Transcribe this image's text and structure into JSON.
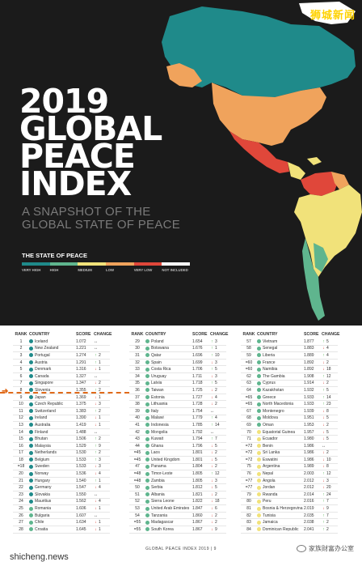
{
  "brand": "狮城新闻",
  "cover": {
    "title_lines": [
      "2019",
      "GLOBAL",
      "PEACE",
      "INDEX"
    ],
    "subtitle_lines": [
      "A SNAPSHOT OF THE",
      "GLOBAL STATE OF PEACE"
    ],
    "state_label": "THE STATE OF PEACE",
    "legend": [
      {
        "label": "VERY HIGH",
        "color": "#1f8a8a"
      },
      {
        "label": "HIGH",
        "color": "#5fb58e"
      },
      {
        "label": "MEDIUM",
        "color": "#f1e27a"
      },
      {
        "label": "LOW",
        "color": "#f0a35c"
      },
      {
        "label": "VERY LOW",
        "color": "#e0473a"
      },
      {
        "label": "NOT INCLUDED",
        "color": "#ffffff"
      }
    ]
  },
  "table_headers": {
    "rank": "RANK",
    "country": "COUNTRY",
    "score": "SCORE",
    "change": "CHANGE"
  },
  "columns": [
    [
      {
        "rank": "1",
        "country": "Iceland",
        "score": "1.072",
        "change": "↔",
        "n": "",
        "dir": "same",
        "color": "#1f8a8a"
      },
      {
        "rank": "2",
        "country": "New Zealand",
        "score": "1.221",
        "change": "↔",
        "n": "",
        "dir": "same",
        "color": "#1f8a8a"
      },
      {
        "rank": "3",
        "country": "Portugal",
        "score": "1.274",
        "change": "↑",
        "n": "2",
        "dir": "up",
        "color": "#1f8a8a"
      },
      {
        "rank": "4",
        "country": "Austria",
        "score": "1.291",
        "change": "↑",
        "n": "1",
        "dir": "up",
        "color": "#1f8a8a"
      },
      {
        "rank": "5",
        "country": "Denmark",
        "score": "1.316",
        "change": "↓",
        "n": "1",
        "dir": "down",
        "color": "#1f8a8a"
      },
      {
        "rank": "6",
        "country": "Canada",
        "score": "1.327",
        "change": "↔",
        "n": "",
        "dir": "same",
        "color": "#1f8a8a"
      },
      {
        "rank": "7",
        "country": "Singapore",
        "score": "1.347",
        "change": "↓",
        "n": "2",
        "dir": "down",
        "color": "#1f8a8a"
      },
      {
        "rank": "8",
        "country": "Slovenia",
        "score": "1.355",
        "change": "↑",
        "n": "2",
        "dir": "up",
        "color": "#1f8a8a"
      },
      {
        "rank": "9",
        "country": "Japan",
        "score": "1.369",
        "change": "↓",
        "n": "1",
        "dir": "down",
        "color": "#1f8a8a"
      },
      {
        "rank": "10",
        "country": "Czech Republic",
        "score": "1.375",
        "change": "↓",
        "n": "3",
        "dir": "down",
        "color": "#1f8a8a"
      },
      {
        "rank": "11",
        "country": "Switzerland",
        "score": "1.383",
        "change": "↑",
        "n": "2",
        "dir": "up",
        "color": "#1f8a8a"
      },
      {
        "rank": "12",
        "country": "Ireland",
        "score": "1.390",
        "change": "↓",
        "n": "1",
        "dir": "down",
        "color": "#1f8a8a"
      },
      {
        "rank": "13",
        "country": "Australia",
        "score": "1.419",
        "change": "↓",
        "n": "1",
        "dir": "down",
        "color": "#1f8a8a"
      },
      {
        "rank": "14",
        "country": "Finland",
        "score": "1.488",
        "change": "↔",
        "n": "",
        "dir": "same",
        "color": "#1f8a8a"
      },
      {
        "rank": "15",
        "country": "Bhutan",
        "score": "1.506",
        "change": "↑",
        "n": "2",
        "dir": "up",
        "color": "#1f8a8a"
      },
      {
        "rank": "16",
        "country": "Malaysia",
        "score": "1.529",
        "change": "↑",
        "n": "9",
        "dir": "up",
        "color": "#1f8a8a"
      },
      {
        "rank": "17",
        "country": "Netherlands",
        "score": "1.530",
        "change": "↑",
        "n": "2",
        "dir": "up",
        "color": "#1f8a8a"
      },
      {
        "rank": "18",
        "country": "Belgium",
        "score": "1.533",
        "change": "↑",
        "n": "3",
        "dir": "up",
        "color": "#1f8a8a"
      },
      {
        "rank": "=18",
        "country": "Sweden",
        "score": "1.533",
        "change": "↓",
        "n": "3",
        "dir": "down",
        "color": "#1f8a8a"
      },
      {
        "rank": "20",
        "country": "Norway",
        "score": "1.536",
        "change": "↓",
        "n": "4",
        "dir": "down",
        "color": "#1f8a8a"
      },
      {
        "rank": "21",
        "country": "Hungary",
        "score": "1.540",
        "change": "↑",
        "n": "1",
        "dir": "up",
        "color": "#1f8a8a"
      },
      {
        "rank": "22",
        "country": "Germany",
        "score": "1.547",
        "change": "↓",
        "n": "4",
        "dir": "down",
        "color": "#1f8a8a"
      },
      {
        "rank": "23",
        "country": "Slovakia",
        "score": "1.550",
        "change": "↔",
        "n": "",
        "dir": "same",
        "color": "#1f8a8a"
      },
      {
        "rank": "24",
        "country": "Mauritius",
        "score": "1.562",
        "change": "↓",
        "n": "4",
        "dir": "down",
        "color": "#1f8a8a"
      },
      {
        "rank": "25",
        "country": "Romania",
        "score": "1.606",
        "change": "↓",
        "n": "1",
        "dir": "down",
        "color": "#5fb58e"
      },
      {
        "rank": "26",
        "country": "Bulgaria",
        "score": "1.607",
        "change": "↔",
        "n": "",
        "dir": "same",
        "color": "#5fb58e"
      },
      {
        "rank": "27",
        "country": "Chile",
        "score": "1.634",
        "change": "↓",
        "n": "1",
        "dir": "down",
        "color": "#5fb58e"
      },
      {
        "rank": "28",
        "country": "Croatia",
        "score": "1.645",
        "change": "↓",
        "n": "1",
        "dir": "down",
        "color": "#5fb58e"
      }
    ],
    [
      {
        "rank": "29",
        "country": "Poland",
        "score": "1.654",
        "change": "↑",
        "n": "3",
        "dir": "up",
        "color": "#5fb58e"
      },
      {
        "rank": "30",
        "country": "Botswana",
        "score": "1.676",
        "change": "↑",
        "n": "1",
        "dir": "up",
        "color": "#5fb58e"
      },
      {
        "rank": "31",
        "country": "Qatar",
        "score": "1.696",
        "change": "↑",
        "n": "10",
        "dir": "up",
        "color": "#5fb58e"
      },
      {
        "rank": "32",
        "country": "Spain",
        "score": "1.699",
        "change": "↓",
        "n": "3",
        "dir": "down",
        "color": "#5fb58e"
      },
      {
        "rank": "33",
        "country": "Costa Rica",
        "score": "1.706",
        "change": "↑",
        "n": "5",
        "dir": "up",
        "color": "#5fb58e"
      },
      {
        "rank": "34",
        "country": "Uruguay",
        "score": "1.711",
        "change": "↓",
        "n": "3",
        "dir": "down",
        "color": "#5fb58e"
      },
      {
        "rank": "35",
        "country": "Latvia",
        "score": "1.718",
        "change": "↑",
        "n": "5",
        "dir": "up",
        "color": "#5fb58e"
      },
      {
        "rank": "36",
        "country": "Taiwan",
        "score": "1.725",
        "change": "↓",
        "n": "2",
        "dir": "down",
        "color": "#5fb58e"
      },
      {
        "rank": "37",
        "country": "Estonia",
        "score": "1.727",
        "change": "↓",
        "n": "4",
        "dir": "down",
        "color": "#5fb58e"
      },
      {
        "rank": "38",
        "country": "Lithuania",
        "score": "1.728",
        "change": "↓",
        "n": "2",
        "dir": "down",
        "color": "#5fb58e"
      },
      {
        "rank": "39",
        "country": "Italy",
        "score": "1.754",
        "change": "↔",
        "n": "",
        "dir": "same",
        "color": "#5fb58e"
      },
      {
        "rank": "40",
        "country": "Malawi",
        "score": "1.779",
        "change": "↑",
        "n": "4",
        "dir": "up",
        "color": "#5fb58e"
      },
      {
        "rank": "41",
        "country": "Indonesia",
        "score": "1.785",
        "change": "↑",
        "n": "14",
        "dir": "up",
        "color": "#5fb58e"
      },
      {
        "rank": "42",
        "country": "Mongolia",
        "score": "1.792",
        "change": "↔",
        "n": "",
        "dir": "same",
        "color": "#5fb58e"
      },
      {
        "rank": "43",
        "country": "Kuwait",
        "score": "1.794",
        "change": "↑",
        "n": "7",
        "dir": "up",
        "color": "#5fb58e"
      },
      {
        "rank": "44",
        "country": "Ghana",
        "score": "1.796",
        "change": "↓",
        "n": "5",
        "dir": "down",
        "color": "#5fb58e"
      },
      {
        "rank": "=45",
        "country": "Laos",
        "score": "1.801",
        "change": "↓",
        "n": "2",
        "dir": "down",
        "color": "#5fb58e"
      },
      {
        "rank": "=45",
        "country": "United Kingdom",
        "score": "1.801",
        "change": "↓",
        "n": "5",
        "dir": "down",
        "color": "#5fb58e"
      },
      {
        "rank": "47",
        "country": "Panama",
        "score": "1.804",
        "change": "↓",
        "n": "2",
        "dir": "down",
        "color": "#5fb58e"
      },
      {
        "rank": "=48",
        "country": "Timor-Leste",
        "score": "1.805",
        "change": "↑",
        "n": "12",
        "dir": "up",
        "color": "#5fb58e"
      },
      {
        "rank": "=48",
        "country": "Zambia",
        "score": "1.805",
        "change": "↓",
        "n": "3",
        "dir": "down",
        "color": "#5fb58e"
      },
      {
        "rank": "50",
        "country": "Serbia",
        "score": "1.812",
        "change": "↓",
        "n": "5",
        "dir": "down",
        "color": "#5fb58e"
      },
      {
        "rank": "51",
        "country": "Albania",
        "score": "1.821",
        "change": "↓",
        "n": "2",
        "dir": "down",
        "color": "#5fb58e"
      },
      {
        "rank": "52",
        "country": "Sierra Leone",
        "score": "1.822",
        "change": "↓",
        "n": "18",
        "dir": "down",
        "color": "#5fb58e"
      },
      {
        "rank": "53",
        "country": "United Arab Emirates",
        "score": "1.847",
        "change": "↓",
        "n": "6",
        "dir": "down",
        "color": "#5fb58e"
      },
      {
        "rank": "54",
        "country": "Tanzania",
        "score": "1.860",
        "change": "↓",
        "n": "2",
        "dir": "down",
        "color": "#5fb58e"
      },
      {
        "rank": "=55",
        "country": "Madagascar",
        "score": "1.867",
        "change": "↓",
        "n": "2",
        "dir": "down",
        "color": "#5fb58e"
      },
      {
        "rank": "=55",
        "country": "South Korea",
        "score": "1.867",
        "change": "↓",
        "n": "9",
        "dir": "down",
        "color": "#5fb58e"
      }
    ],
    [
      {
        "rank": "57",
        "country": "Vietnam",
        "score": "1.877",
        "change": "↑",
        "n": "5",
        "dir": "up",
        "color": "#5fb58e"
      },
      {
        "rank": "58",
        "country": "Senegal",
        "score": "1.883",
        "change": "↓",
        "n": "4",
        "dir": "down",
        "color": "#5fb58e"
      },
      {
        "rank": "59",
        "country": "Liberia",
        "score": "1.889",
        "change": "↑",
        "n": "4",
        "dir": "up",
        "color": "#5fb58e"
      },
      {
        "rank": "=60",
        "country": "France",
        "score": "1.892",
        "change": "↓",
        "n": "2",
        "dir": "down",
        "color": "#5fb58e"
      },
      {
        "rank": "=60",
        "country": "Namibia",
        "score": "1.892",
        "change": "↓",
        "n": "18",
        "dir": "down",
        "color": "#5fb58e"
      },
      {
        "rank": "62",
        "country": "The Gambia",
        "score": "1.908",
        "change": "↑",
        "n": "12",
        "dir": "up",
        "color": "#5fb58e"
      },
      {
        "rank": "63",
        "country": "Cyprus",
        "score": "1.914",
        "change": "↓",
        "n": "2",
        "dir": "down",
        "color": "#5fb58e"
      },
      {
        "rank": "64",
        "country": "Kazakhstan",
        "score": "1.932",
        "change": "↑",
        "n": "5",
        "dir": "up",
        "color": "#5fb58e"
      },
      {
        "rank": "=65",
        "country": "Greece",
        "score": "1.933",
        "change": "↑",
        "n": "14",
        "dir": "up",
        "color": "#5fb58e"
      },
      {
        "rank": "=65",
        "country": "North Macedonia",
        "score": "1.933",
        "change": "↑",
        "n": "23",
        "dir": "up",
        "color": "#5fb58e"
      },
      {
        "rank": "67",
        "country": "Montenegro",
        "score": "1.939",
        "change": "↓",
        "n": "8",
        "dir": "down",
        "color": "#5fb58e"
      },
      {
        "rank": "68",
        "country": "Moldova",
        "score": "1.951",
        "change": "↓",
        "n": "5",
        "dir": "down",
        "color": "#5fb58e"
      },
      {
        "rank": "69",
        "country": "Oman",
        "score": "1.953",
        "change": "↓",
        "n": "2",
        "dir": "down",
        "color": "#5fb58e"
      },
      {
        "rank": "70",
        "country": "Equatorial Guinea",
        "score": "1.957",
        "change": "↓",
        "n": "5",
        "dir": "down",
        "color": "#f1e27a"
      },
      {
        "rank": "71",
        "country": "Ecuador",
        "score": "1.980",
        "change": "↓",
        "n": "5",
        "dir": "down",
        "color": "#f1e27a"
      },
      {
        "rank": "=72",
        "country": "Benin",
        "score": "1.986",
        "change": "↔",
        "n": "",
        "dir": "same",
        "color": "#f1e27a"
      },
      {
        "rank": "=72",
        "country": "Sri Lanka",
        "score": "1.986",
        "change": "↓",
        "n": "2",
        "dir": "down",
        "color": "#f1e27a"
      },
      {
        "rank": "=72",
        "country": "Eswatini",
        "score": "1.986",
        "change": "↓",
        "n": "10",
        "dir": "down",
        "color": "#f1e27a"
      },
      {
        "rank": "75",
        "country": "Argentina",
        "score": "1.989",
        "change": "↓",
        "n": "8",
        "dir": "down",
        "color": "#f1e27a"
      },
      {
        "rank": "76",
        "country": "Nepal",
        "score": "2.003",
        "change": "↑",
        "n": "12",
        "dir": "up",
        "color": "#f1e27a"
      },
      {
        "rank": "=77",
        "country": "Angola",
        "score": "2.012",
        "change": "↓",
        "n": "3",
        "dir": "down",
        "color": "#f1e27a"
      },
      {
        "rank": "=77",
        "country": "Jordan",
        "score": "2.012",
        "change": "↓",
        "n": "20",
        "dir": "down",
        "color": "#f1e27a"
      },
      {
        "rank": "79",
        "country": "Rwanda",
        "score": "2.014",
        "change": "↑",
        "n": "24",
        "dir": "up",
        "color": "#f1e27a"
      },
      {
        "rank": "80",
        "country": "Peru",
        "score": "2.016",
        "change": "↑",
        "n": "7",
        "dir": "up",
        "color": "#f1e27a"
      },
      {
        "rank": "81",
        "country": "Bosnia & Herzegovina",
        "score": "2.019",
        "change": "↓",
        "n": "9",
        "dir": "down",
        "color": "#f1e27a"
      },
      {
        "rank": "82",
        "country": "Tunisia",
        "score": "2.035",
        "change": "↑",
        "n": "7",
        "dir": "up",
        "color": "#f1e27a"
      },
      {
        "rank": "83",
        "country": "Jamaica",
        "score": "2.038",
        "change": "↑",
        "n": "2",
        "dir": "up",
        "color": "#f1e27a"
      },
      {
        "rank": "84",
        "country": "Dominican Republic",
        "score": "2.041",
        "change": "↑",
        "n": "2",
        "dir": "up",
        "color": "#f1e27a"
      }
    ]
  ],
  "footer": "GLOBAL PEACE INDEX 2019 | 9",
  "watermark": "家族财富办公室",
  "source": "shicheng.news"
}
